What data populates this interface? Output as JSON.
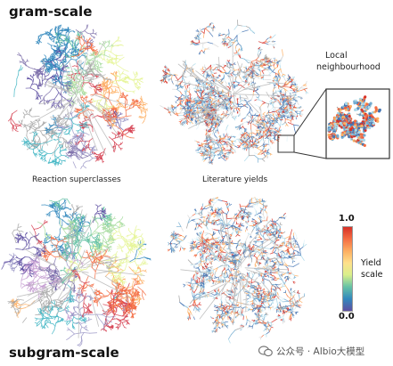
{
  "labels": {
    "top_row": "gram-scale",
    "bottom_row": "subgram-scale",
    "caption_left": "Reaction superclasses",
    "caption_right": "Literature yields",
    "inset_title_line1": "Local",
    "inset_title_line2": "neighbourhood"
  },
  "colorbar": {
    "max_label": "1.0",
    "min_label": "0.0",
    "title_line1": "Yield",
    "title_line2": "scale",
    "colors": [
      "#d73027",
      "#f46d43",
      "#fdae61",
      "#fee08b",
      "#d9ef8b",
      "#66c2a5",
      "#3288bd",
      "#5e4fa2"
    ]
  },
  "watermark": {
    "text": "公众号 · AIbio大模型",
    "icon": "wechat-icon"
  },
  "palettes": {
    "superclasses": [
      "#5e4fa2",
      "#8073ac",
      "#3288bd",
      "#66c2a5",
      "#abdda4",
      "#e6f598",
      "#fdae61",
      "#f46d43",
      "#d53e4f",
      "#9e9ac8",
      "#41b6c4",
      "#a6a6a6",
      "#c7a0d3"
    ],
    "yields": [
      "#4575b4",
      "#74add1",
      "#abd9e9",
      "#e0f3f8",
      "#d9d9d9",
      "#fdae61",
      "#f46d43",
      "#d73027",
      "#9e9e9e"
    ]
  }
}
